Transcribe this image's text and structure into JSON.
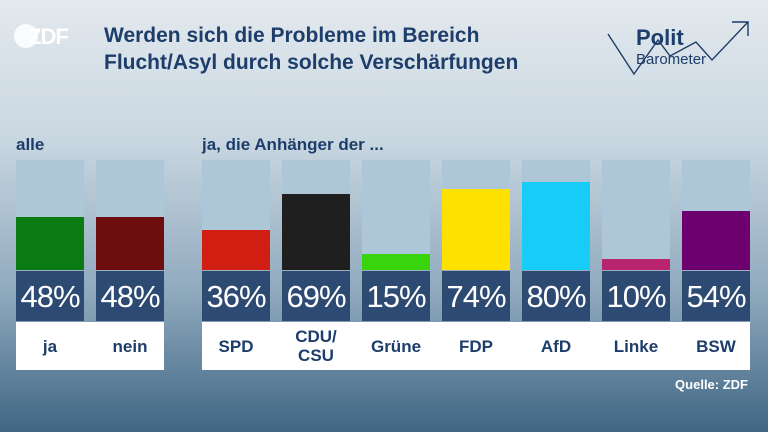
{
  "logo": {
    "brand": "ZDF"
  },
  "title": {
    "line1": "Werden sich die Probleme im Bereich",
    "line2": "Flucht/Asyl durch solche Verschärfungen"
  },
  "politbarometer": {
    "word1": "Polit",
    "word2": "Barometer"
  },
  "groups": {
    "all_label": "alle",
    "party_label": "ja, die Anhänger der ..."
  },
  "source": "Quelle: ZDF",
  "colors": {
    "ja": "#0a7a12",
    "nein": "#6e0d0f",
    "SPD": "#d01e12",
    "CDU/CSU": "#1f1f1f",
    "Grüne": "#39d610",
    "FDP": "#ffe100",
    "AfD": "#17cdf7",
    "Linke": "#b8246e",
    "BSW": "#6b006e",
    "track": "#aec7d8",
    "pct_box": "#2c4a72"
  },
  "chart_data": {
    "type": "bar",
    "categories": [
      "ja",
      "nein",
      "SPD",
      "CDU/\nCSU",
      "Grüne",
      "FDP",
      "AfD",
      "Linke",
      "BSW"
    ],
    "values": [
      48,
      48,
      36,
      69,
      15,
      74,
      80,
      10,
      54
    ],
    "value_labels": [
      "48%",
      "48%",
      "36%",
      "69%",
      "15%",
      "74%",
      "80%",
      "10%",
      "54%"
    ],
    "ylim": [
      0,
      100
    ]
  }
}
